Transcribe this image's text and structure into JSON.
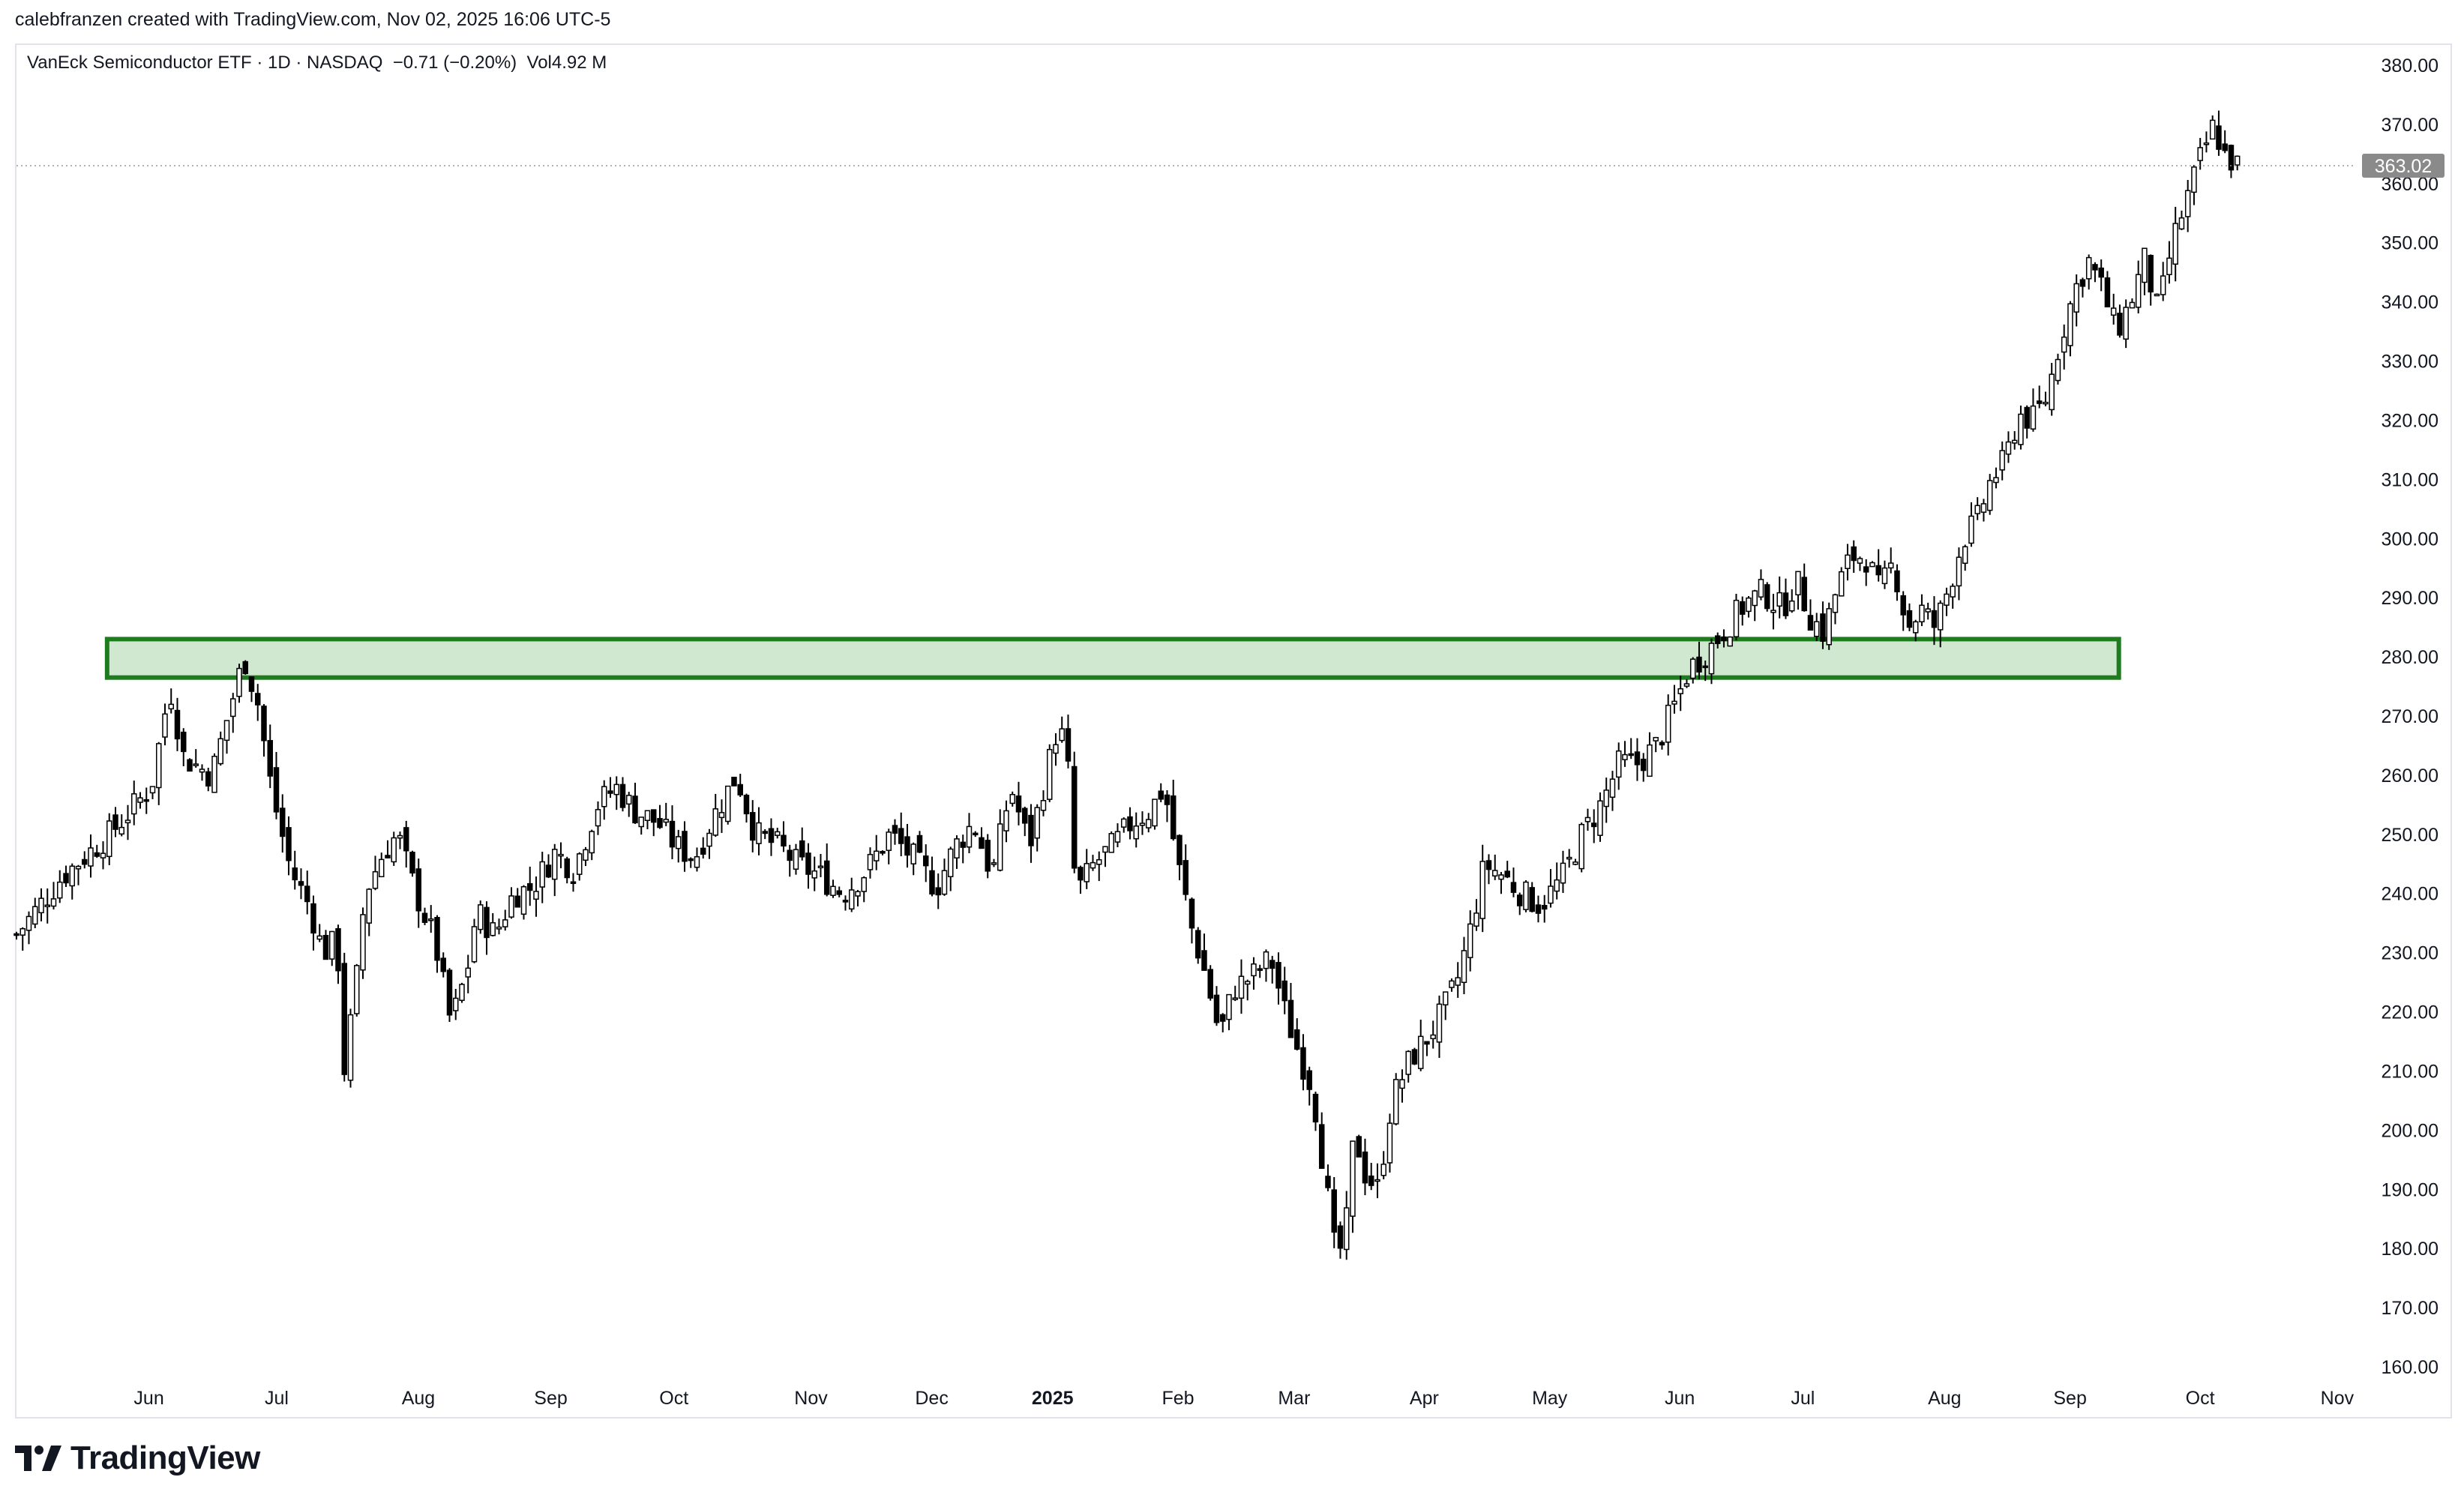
{
  "attribution": "calebfranzen created with TradingView.com, Nov 02, 2025 16:06 UTC-5",
  "legend": {
    "name": "VanEck Semiconductor ETF",
    "interval": "1D",
    "exchange": "NASDAQ",
    "change": "−0.71 (−0.20%)",
    "vol_label": "Vol",
    "vol_value": "4.92 M"
  },
  "footer": {
    "brand": "TradingView"
  },
  "colors": {
    "candle_up": "#ffffff",
    "candle_down": "#000000",
    "wick": "#000000",
    "zone_fill": "#cfe8cf",
    "zone_stroke": "#1e7b1e",
    "price_tag": "#8a8a8a"
  },
  "chart_data": {
    "type": "candlestick",
    "ylim": [
      155,
      383
    ],
    "y_ticks": [
      "160.00",
      "170.00",
      "180.00",
      "190.00",
      "200.00",
      "210.00",
      "220.00",
      "230.00",
      "240.00",
      "250.00",
      "260.00",
      "270.00",
      "280.00",
      "290.00",
      "300.00",
      "310.00",
      "320.00",
      "330.00",
      "340.00",
      "350.00",
      "360.00",
      "370.00",
      "380.00"
    ],
    "x_ticks": [
      {
        "label": "Jun",
        "x": 0.057
      },
      {
        "label": "Jul",
        "x": 0.112
      },
      {
        "label": "Aug",
        "x": 0.173
      },
      {
        "label": "Sep",
        "x": 0.23
      },
      {
        "label": "Oct",
        "x": 0.283
      },
      {
        "label": "Nov",
        "x": 0.342
      },
      {
        "label": "Dec",
        "x": 0.394
      },
      {
        "label": "2025",
        "x": 0.446,
        "bold": true
      },
      {
        "label": "Feb",
        "x": 0.5
      },
      {
        "label": "Mar",
        "x": 0.55
      },
      {
        "label": "Apr",
        "x": 0.606
      },
      {
        "label": "May",
        "x": 0.66
      },
      {
        "label": "Jun",
        "x": 0.716
      },
      {
        "label": "Jul",
        "x": 0.769
      },
      {
        "label": "Aug",
        "x": 0.83
      },
      {
        "label": "Sep",
        "x": 0.884
      },
      {
        "label": "Oct",
        "x": 0.94
      },
      {
        "label": "Nov",
        "x": 0.999
      }
    ],
    "last_price": 363.02,
    "last_price_label": "363.02",
    "resistance_zone": {
      "low": 276.5,
      "high": 283.0,
      "x_start": 0.039,
      "x_end": 0.905
    },
    "anchors": [
      [
        0.0,
        233
      ],
      [
        0.02,
        243
      ],
      [
        0.04,
        250
      ],
      [
        0.058,
        258
      ],
      [
        0.066,
        275
      ],
      [
        0.072,
        263
      ],
      [
        0.084,
        260
      ],
      [
        0.098,
        280
      ],
      [
        0.104,
        272
      ],
      [
        0.11,
        257
      ],
      [
        0.118,
        244
      ],
      [
        0.126,
        238
      ],
      [
        0.132,
        230
      ],
      [
        0.138,
        232
      ],
      [
        0.141,
        210
      ],
      [
        0.146,
        224
      ],
      [
        0.15,
        240
      ],
      [
        0.158,
        247
      ],
      [
        0.164,
        250
      ],
      [
        0.172,
        240
      ],
      [
        0.18,
        232
      ],
      [
        0.187,
        218
      ],
      [
        0.194,
        227
      ],
      [
        0.198,
        237
      ],
      [
        0.206,
        233
      ],
      [
        0.214,
        240
      ],
      [
        0.222,
        241
      ],
      [
        0.232,
        247
      ],
      [
        0.24,
        244
      ],
      [
        0.25,
        255
      ],
      [
        0.258,
        258
      ],
      [
        0.266,
        254
      ],
      [
        0.276,
        252
      ],
      [
        0.284,
        248
      ],
      [
        0.292,
        246
      ],
      [
        0.3,
        253
      ],
      [
        0.31,
        260
      ],
      [
        0.318,
        250
      ],
      [
        0.328,
        248
      ],
      [
        0.336,
        245
      ],
      [
        0.346,
        243
      ],
      [
        0.356,
        240
      ],
      [
        0.366,
        244
      ],
      [
        0.376,
        250
      ],
      [
        0.386,
        246
      ],
      [
        0.396,
        241
      ],
      [
        0.404,
        248
      ],
      [
        0.412,
        252
      ],
      [
        0.42,
        243
      ],
      [
        0.428,
        258
      ],
      [
        0.436,
        248
      ],
      [
        0.442,
        258
      ],
      [
        0.448,
        268
      ],
      [
        0.452,
        265
      ],
      [
        0.456,
        240
      ],
      [
        0.464,
        245
      ],
      [
        0.472,
        248
      ],
      [
        0.48,
        252
      ],
      [
        0.488,
        254
      ],
      [
        0.494,
        258
      ],
      [
        0.5,
        245
      ],
      [
        0.506,
        234
      ],
      [
        0.512,
        226
      ],
      [
        0.518,
        216
      ],
      [
        0.524,
        224
      ],
      [
        0.532,
        226
      ],
      [
        0.54,
        229
      ],
      [
        0.546,
        220
      ],
      [
        0.552,
        213
      ],
      [
        0.558,
        207
      ],
      [
        0.564,
        190
      ],
      [
        0.568,
        178
      ],
      [
        0.572,
        182
      ],
      [
        0.576,
        200
      ],
      [
        0.58,
        193
      ],
      [
        0.586,
        190
      ],
      [
        0.592,
        205
      ],
      [
        0.6,
        212
      ],
      [
        0.608,
        216
      ],
      [
        0.614,
        220
      ],
      [
        0.62,
        225
      ],
      [
        0.626,
        234
      ],
      [
        0.632,
        245
      ],
      [
        0.64,
        243
      ],
      [
        0.648,
        240
      ],
      [
        0.656,
        238
      ],
      [
        0.666,
        243
      ],
      [
        0.674,
        250
      ],
      [
        0.682,
        255
      ],
      [
        0.69,
        262
      ],
      [
        0.698,
        262
      ],
      [
        0.706,
        265
      ],
      [
        0.714,
        272
      ],
      [
        0.72,
        278
      ],
      [
        0.728,
        281
      ],
      [
        0.736,
        285
      ],
      [
        0.744,
        289
      ],
      [
        0.752,
        291
      ],
      [
        0.76,
        288
      ],
      [
        0.766,
        293
      ],
      [
        0.772,
        287
      ],
      [
        0.778,
        284
      ],
      [
        0.784,
        292
      ],
      [
        0.79,
        297
      ],
      [
        0.796,
        297
      ],
      [
        0.802,
        291
      ],
      [
        0.808,
        296
      ],
      [
        0.814,
        285
      ],
      [
        0.82,
        288
      ],
      [
        0.826,
        285
      ],
      [
        0.832,
        292
      ],
      [
        0.838,
        300
      ],
      [
        0.844,
        303
      ],
      [
        0.85,
        310
      ],
      [
        0.856,
        313
      ],
      [
        0.862,
        321
      ],
      [
        0.868,
        320
      ],
      [
        0.874,
        324
      ],
      [
        0.88,
        334
      ],
      [
        0.886,
        342
      ],
      [
        0.892,
        347
      ],
      [
        0.898,
        342
      ],
      [
        0.904,
        335
      ],
      [
        0.91,
        340
      ],
      [
        0.916,
        347
      ],
      [
        0.922,
        338
      ],
      [
        0.928,
        350
      ],
      [
        0.934,
        357
      ],
      [
        0.94,
        364
      ],
      [
        0.946,
        370
      ],
      [
        0.95,
        365
      ],
      [
        0.956,
        363
      ]
    ]
  }
}
